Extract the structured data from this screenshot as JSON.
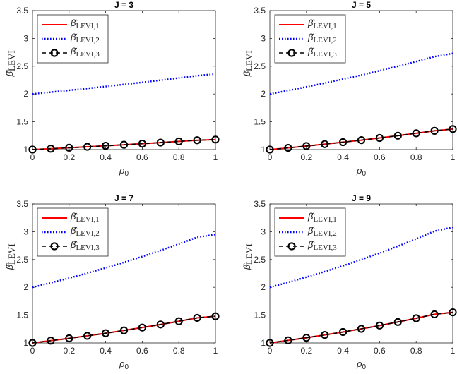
{
  "chart_data": [
    {
      "type": "line",
      "title": "J = 3",
      "xlabel": "ρ0",
      "ylabel": "β̂LEVI",
      "xlim": [
        0,
        1
      ],
      "ylim": [
        1,
        3.5
      ],
      "xticks": [
        "0",
        "0.2",
        "0.4",
        "0.6",
        "0.8",
        "1"
      ],
      "yticks": [
        "1",
        "1.5",
        "2",
        "2.5",
        "3",
        "3.5"
      ],
      "legend_position": "top-left",
      "x": [
        0,
        0.1,
        0.2,
        0.3,
        0.4,
        0.5,
        0.6,
        0.7,
        0.8,
        0.9,
        1.0
      ],
      "series": [
        {
          "name": "β̂LEVI,1",
          "color": "#ff0000",
          "style": "solid",
          "values": [
            1.0,
            1.016,
            1.033,
            1.05,
            1.068,
            1.087,
            1.106,
            1.126,
            1.147,
            1.168,
            1.18
          ]
        },
        {
          "name": "β̂LEVI,2",
          "color": "#0000ff",
          "style": "dotted",
          "values": [
            2.0,
            2.033,
            2.066,
            2.1,
            2.135,
            2.172,
            2.209,
            2.248,
            2.288,
            2.329,
            2.36
          ]
        },
        {
          "name": "β̂LEVI,3",
          "color": "#000000",
          "style": "dashed-circle",
          "values": [
            1.0,
            1.016,
            1.033,
            1.05,
            1.068,
            1.087,
            1.106,
            1.126,
            1.147,
            1.168,
            1.18
          ]
        }
      ]
    },
    {
      "type": "line",
      "title": "J = 5",
      "xlabel": "ρ0",
      "ylabel": "β̂LEVI",
      "xlim": [
        0,
        1
      ],
      "ylim": [
        1,
        3.5
      ],
      "xticks": [
        "0",
        "0.2",
        "0.4",
        "0.6",
        "0.8",
        "1"
      ],
      "yticks": [
        "1",
        "1.5",
        "2",
        "2.5",
        "3",
        "3.5"
      ],
      "legend_position": "top-left",
      "x": [
        0,
        0.1,
        0.2,
        0.3,
        0.4,
        0.5,
        0.6,
        0.7,
        0.8,
        0.9,
        1.0
      ],
      "series": [
        {
          "name": "β̂LEVI,1",
          "color": "#ff0000",
          "style": "solid",
          "values": [
            1.0,
            1.031,
            1.064,
            1.098,
            1.133,
            1.17,
            1.209,
            1.25,
            1.293,
            1.338,
            1.37
          ]
        },
        {
          "name": "β̂LEVI,2",
          "color": "#0000ff",
          "style": "dotted",
          "values": [
            2.0,
            2.062,
            2.128,
            2.196,
            2.267,
            2.34,
            2.419,
            2.5,
            2.584,
            2.672,
            2.73
          ]
        },
        {
          "name": "β̂LEVI,3",
          "color": "#000000",
          "style": "dashed-circle",
          "values": [
            1.0,
            1.031,
            1.064,
            1.098,
            1.133,
            1.17,
            1.209,
            1.25,
            1.293,
            1.338,
            1.37
          ]
        }
      ]
    },
    {
      "type": "line",
      "title": "J = 7",
      "xlabel": "ρ0",
      "ylabel": "β̂LEVI",
      "xlim": [
        0,
        1
      ],
      "ylim": [
        1,
        3.5
      ],
      "xticks": [
        "0",
        "0.2",
        "0.4",
        "0.6",
        "0.8",
        "1"
      ],
      "yticks": [
        "1",
        "1.5",
        "2",
        "2.5",
        "3",
        "3.5"
      ],
      "legend_position": "top-left",
      "x": [
        0,
        0.1,
        0.2,
        0.3,
        0.4,
        0.5,
        0.6,
        0.7,
        0.8,
        0.9,
        1.0
      ],
      "series": [
        {
          "name": "β̂LEVI,1",
          "color": "#ff0000",
          "style": "solid",
          "values": [
            1.0,
            1.041,
            1.083,
            1.128,
            1.175,
            1.225,
            1.277,
            1.332,
            1.39,
            1.451,
            1.48
          ]
        },
        {
          "name": "β̂LEVI,2",
          "color": "#0000ff",
          "style": "dotted",
          "values": [
            2.0,
            2.081,
            2.166,
            2.256,
            2.35,
            2.449,
            2.553,
            2.663,
            2.779,
            2.901,
            2.95
          ]
        },
        {
          "name": "β̂LEVI,3",
          "color": "#000000",
          "style": "dashed-circle",
          "values": [
            1.0,
            1.041,
            1.083,
            1.128,
            1.175,
            1.225,
            1.277,
            1.332,
            1.39,
            1.451,
            1.48
          ]
        }
      ]
    },
    {
      "type": "line",
      "title": "J = 9",
      "xlabel": "ρ0",
      "ylabel": "β̂LEVI",
      "xlim": [
        0,
        1
      ],
      "ylim": [
        1,
        3.5
      ],
      "xticks": [
        "0",
        "0.2",
        "0.4",
        "0.6",
        "0.8",
        "1"
      ],
      "yticks": [
        "1",
        "1.5",
        "2",
        "2.5",
        "3",
        "3.5"
      ],
      "legend_position": "top-left",
      "x": [
        0,
        0.1,
        0.2,
        0.3,
        0.4,
        0.5,
        0.6,
        0.7,
        0.8,
        0.9,
        1.0
      ],
      "series": [
        {
          "name": "β̂LEVI,1",
          "color": "#ff0000",
          "style": "solid",
          "values": [
            1.0,
            1.046,
            1.093,
            1.144,
            1.197,
            1.254,
            1.313,
            1.377,
            1.444,
            1.515,
            1.55
          ]
        },
        {
          "name": "β̂LEVI,2",
          "color": "#0000ff",
          "style": "dotted",
          "values": [
            2.0,
            2.089,
            2.184,
            2.283,
            2.388,
            2.499,
            2.616,
            2.74,
            2.871,
            3.01,
            3.08
          ]
        },
        {
          "name": "β̂LEVI,3",
          "color": "#000000",
          "style": "dashed-circle",
          "values": [
            1.0,
            1.046,
            1.093,
            1.144,
            1.197,
            1.254,
            1.313,
            1.377,
            1.444,
            1.515,
            1.55
          ]
        }
      ]
    }
  ]
}
